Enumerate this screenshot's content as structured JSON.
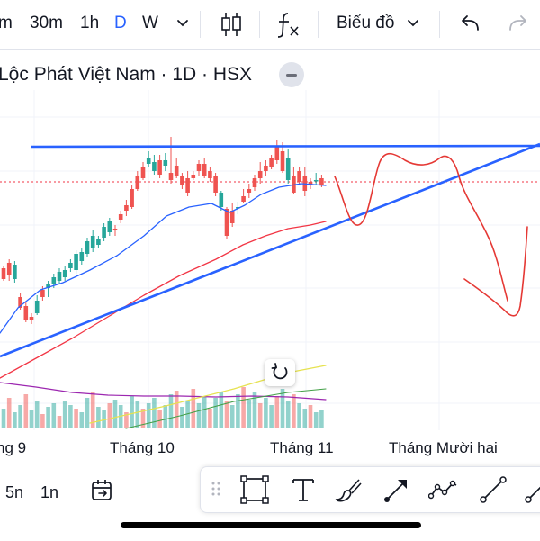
{
  "toolbar": {
    "timeframes": [
      {
        "label": "m",
        "active": false
      },
      {
        "label": "30m",
        "active": false
      },
      {
        "label": "1h",
        "active": false
      },
      {
        "label": "D",
        "active": true
      },
      {
        "label": "W",
        "active": false
      }
    ],
    "chart_type_label": "Biểu đồ"
  },
  "symbol": {
    "title": "Lộc Phát Việt Nam · 1D · HSX"
  },
  "chart": {
    "x_labels": [
      "ng 9",
      "Tháng 10",
      "Tháng 11",
      "Tháng Mười hai"
    ],
    "colors": {
      "up": "#26a69a",
      "down": "#ef5350",
      "trendline": "#2962ff",
      "ma_fast": "#2962ff",
      "ma_slow": "#f23645",
      "drawing": "#e53935",
      "vol_ma": "#9c27b0"
    }
  },
  "bottombar": {
    "ranges": [
      "5n",
      "1n"
    ]
  },
  "drawing_tools": [
    "rectangle-icon",
    "text-icon",
    "brush-icon",
    "arrow-icon",
    "path-icon",
    "trendline-icon"
  ]
}
